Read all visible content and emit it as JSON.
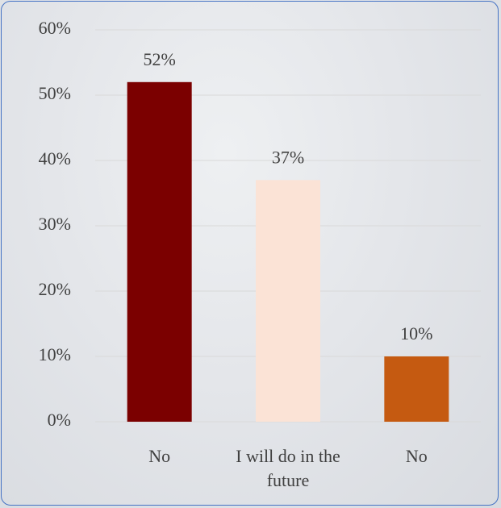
{
  "chart_data": {
    "type": "bar",
    "categories": [
      "No",
      "I will do in the future",
      "No"
    ],
    "values": [
      52,
      37,
      10
    ],
    "value_labels": [
      "52%",
      "37%",
      "10%"
    ],
    "colors": [
      "#7b0000",
      "#fbe3d6",
      "#c55a11"
    ],
    "ylim": [
      0,
      60
    ],
    "yticks": [
      {
        "value": 0,
        "label": "0%"
      },
      {
        "value": 10,
        "label": "10%"
      },
      {
        "value": 20,
        "label": "20%"
      },
      {
        "value": 30,
        "label": "30%"
      },
      {
        "value": 40,
        "label": "40%"
      },
      {
        "value": 50,
        "label": "50%"
      },
      {
        "value": 60,
        "label": "60%"
      }
    ],
    "grid": true
  }
}
